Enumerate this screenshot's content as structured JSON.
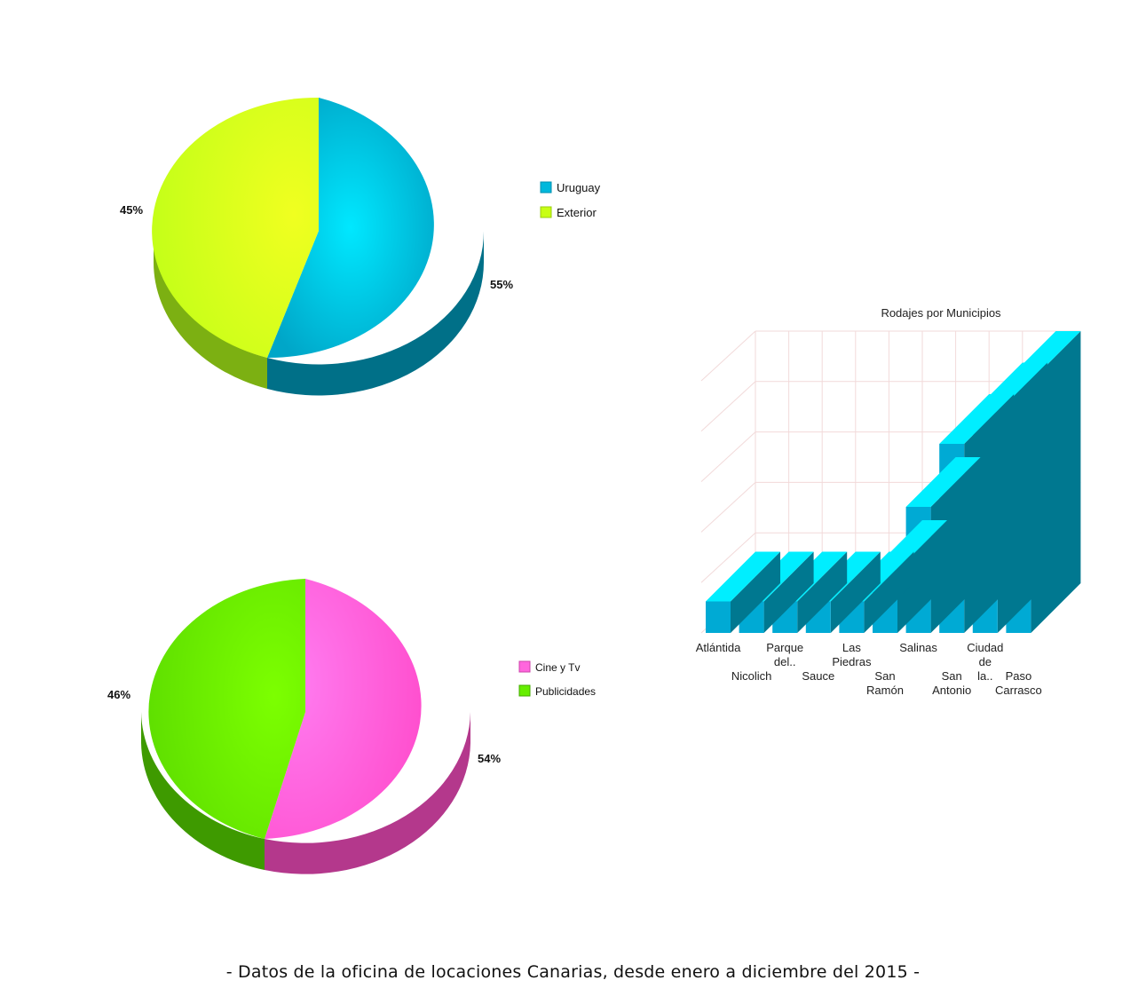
{
  "footer": "- Datos de la oficina de locaciones Canarias, desde enero a diciembre del 2015 -",
  "chart_data": [
    {
      "type": "pie",
      "labels": [
        "Uruguay",
        "Exterior"
      ],
      "values": [
        55,
        45
      ],
      "display_labels": [
        "55%",
        "45%"
      ],
      "colors": [
        "#00c4e6",
        "#c8ff14"
      ],
      "legend_position": "right"
    },
    {
      "type": "pie",
      "labels": [
        "Cine y Tv",
        "Publicidades"
      ],
      "values": [
        54,
        46
      ],
      "display_labels": [
        "54%",
        "46%"
      ],
      "colors": [
        "#ff66dd",
        "#66ee00"
      ],
      "legend_position": "right"
    },
    {
      "type": "bar",
      "title": "Rodajes por Municipios",
      "categories": [
        "Atlántida",
        "Nicolich",
        "Parque del..",
        "Sauce",
        "Las Piedras",
        "San Ramón",
        "Salinas",
        "San Antonio",
        "Ciudad de la..",
        "Paso Carrasco"
      ],
      "values": [
        1,
        1,
        1,
        1,
        1,
        2,
        4,
        6,
        7,
        8
      ],
      "ylim": [
        0,
        8
      ],
      "grid": true,
      "colors": {
        "front": "#00aad4",
        "top": "#00eeff",
        "side": "#007890"
      }
    }
  ]
}
